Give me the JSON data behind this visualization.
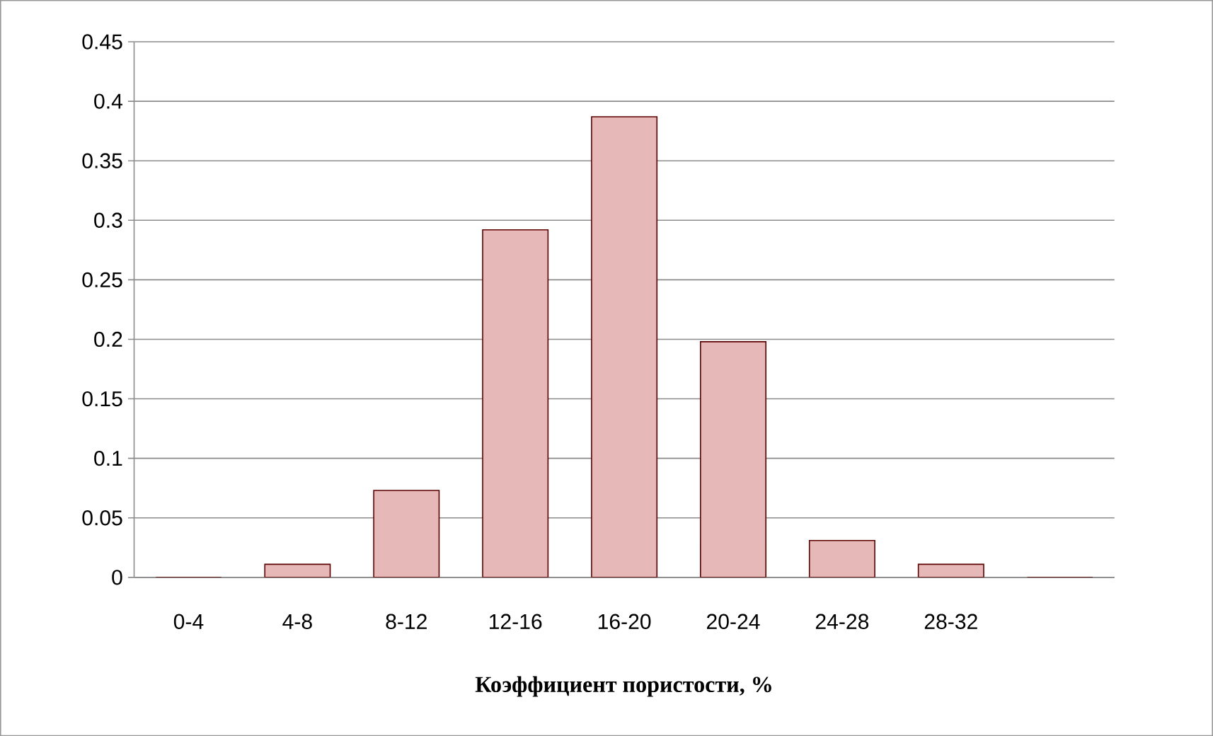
{
  "chart_data": {
    "type": "bar",
    "xlabel": "Коэффициент пористости, %",
    "categories": [
      "0-4",
      "4-8",
      "8-12",
      "12-16",
      "16-20",
      "20-24",
      "24-28",
      "28-32",
      null
    ],
    "values": [
      0,
      0.011,
      0.073,
      0.292,
      0.387,
      0.198,
      0.031,
      0.011,
      0
    ],
    "color": "#e6b8b7",
    "ylim": [
      0,
      0.45
    ],
    "yticks": [
      0,
      0.05,
      0.1,
      0.15,
      0.2,
      0.25,
      0.3,
      0.35,
      0.4,
      0.45
    ],
    "grid": "y"
  }
}
